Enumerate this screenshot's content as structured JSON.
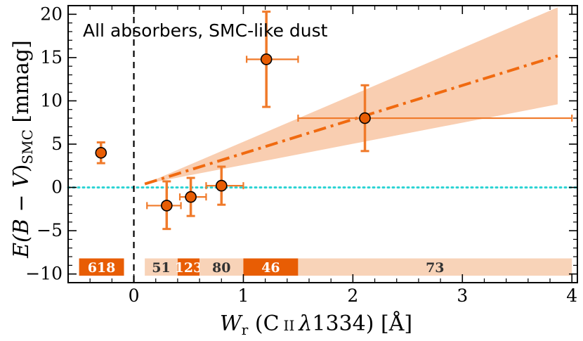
{
  "chart_data": {
    "type": "scatter",
    "title": "All absorbers, SMC-like dust",
    "xlabel": {
      "symbol": "W",
      "subscript": "r",
      "ion": "C",
      "ion_stage": "II",
      "lambda": "λ",
      "line": "1334",
      "unit": "[Å]"
    },
    "ylabel": {
      "prefix": "E(",
      "b": "B",
      "dash": " − ",
      "v": "V",
      "close": ")",
      "subscript": "SMC",
      "unit": "[mmag]"
    },
    "xlim": [
      -0.6,
      4.05
    ],
    "ylim": [
      -11,
      21
    ],
    "x_ticks": [
      0,
      1,
      2,
      3,
      4
    ],
    "x_tick_labels": [
      "0",
      "1",
      "2",
      "3",
      "4"
    ],
    "y_ticks": [
      -10,
      -5,
      0,
      5,
      10,
      15,
      20
    ],
    "y_tick_labels": [
      "−10",
      "−5",
      "0",
      "5",
      "10",
      "15",
      "20"
    ],
    "points": [
      {
        "x": -0.3,
        "y": 4.0,
        "yerr_low": 1.2,
        "yerr_high": 1.2,
        "xerr_low": 0.0,
        "xerr_high": 0.0
      },
      {
        "x": 0.3,
        "y": -2.1,
        "yerr_low": 2.7,
        "yerr_high": 2.8,
        "xerr_low": 0.18,
        "xerr_high": 0.13
      },
      {
        "x": 0.52,
        "y": -1.1,
        "yerr_low": 2.2,
        "yerr_high": 2.2,
        "xerr_low": 0.1,
        "xerr_high": 0.14
      },
      {
        "x": 0.8,
        "y": 0.2,
        "yerr_low": 2.2,
        "yerr_high": 2.2,
        "xerr_low": 0.14,
        "xerr_high": 0.2
      },
      {
        "x": 1.21,
        "y": 14.8,
        "yerr_low": 5.5,
        "yerr_high": 5.5,
        "xerr_low": 0.18,
        "xerr_high": 0.29
      },
      {
        "x": 2.11,
        "y": 8.0,
        "yerr_low": 3.8,
        "yerr_high": 3.8,
        "xerr_low": 0.61,
        "xerr_high": 1.89
      }
    ],
    "fit": {
      "type": "linear",
      "x_range": [
        0.1,
        3.87
      ],
      "y_at_start": 0.4,
      "y_at_end": 15.2,
      "band_low_at_end": 9.6,
      "band_high_at_end": 20.8,
      "style": "dash-dot"
    },
    "reference_lines": [
      {
        "orientation": "horizontal",
        "value": 0,
        "style": "dotted",
        "color": "#29d3d3"
      },
      {
        "orientation": "vertical",
        "value": 0,
        "style": "dashed",
        "color": "#000000"
      }
    ],
    "bins": [
      {
        "x_start": -0.5,
        "x_end": -0.09,
        "count": "618",
        "shade": "dark"
      },
      {
        "x_start": 0.1,
        "x_end": 0.4,
        "count": "51",
        "shade": "light"
      },
      {
        "x_start": 0.4,
        "x_end": 0.6,
        "count": "123",
        "shade": "dark"
      },
      {
        "x_start": 0.6,
        "x_end": 1.0,
        "count": "80",
        "shade": "light"
      },
      {
        "x_start": 1.0,
        "x_end": 1.5,
        "count": "46",
        "shade": "dark"
      },
      {
        "x_start": 1.5,
        "x_end": 4.0,
        "count": "73",
        "shade": "light"
      }
    ],
    "bin_y_range": [
      -10.2,
      -8.2
    ],
    "colors": {
      "point_fill": "#e85d04",
      "error_bar": "#f07a2a",
      "fit_line": "#f06a10",
      "band": "#f8c5a3",
      "bin_dark": "#e85d04",
      "bin_light": "#f8d3b8",
      "bin_label_on_dark": "#ffffff",
      "bin_label_on_light": "#333333",
      "zero_line": "#29d3d3"
    }
  }
}
